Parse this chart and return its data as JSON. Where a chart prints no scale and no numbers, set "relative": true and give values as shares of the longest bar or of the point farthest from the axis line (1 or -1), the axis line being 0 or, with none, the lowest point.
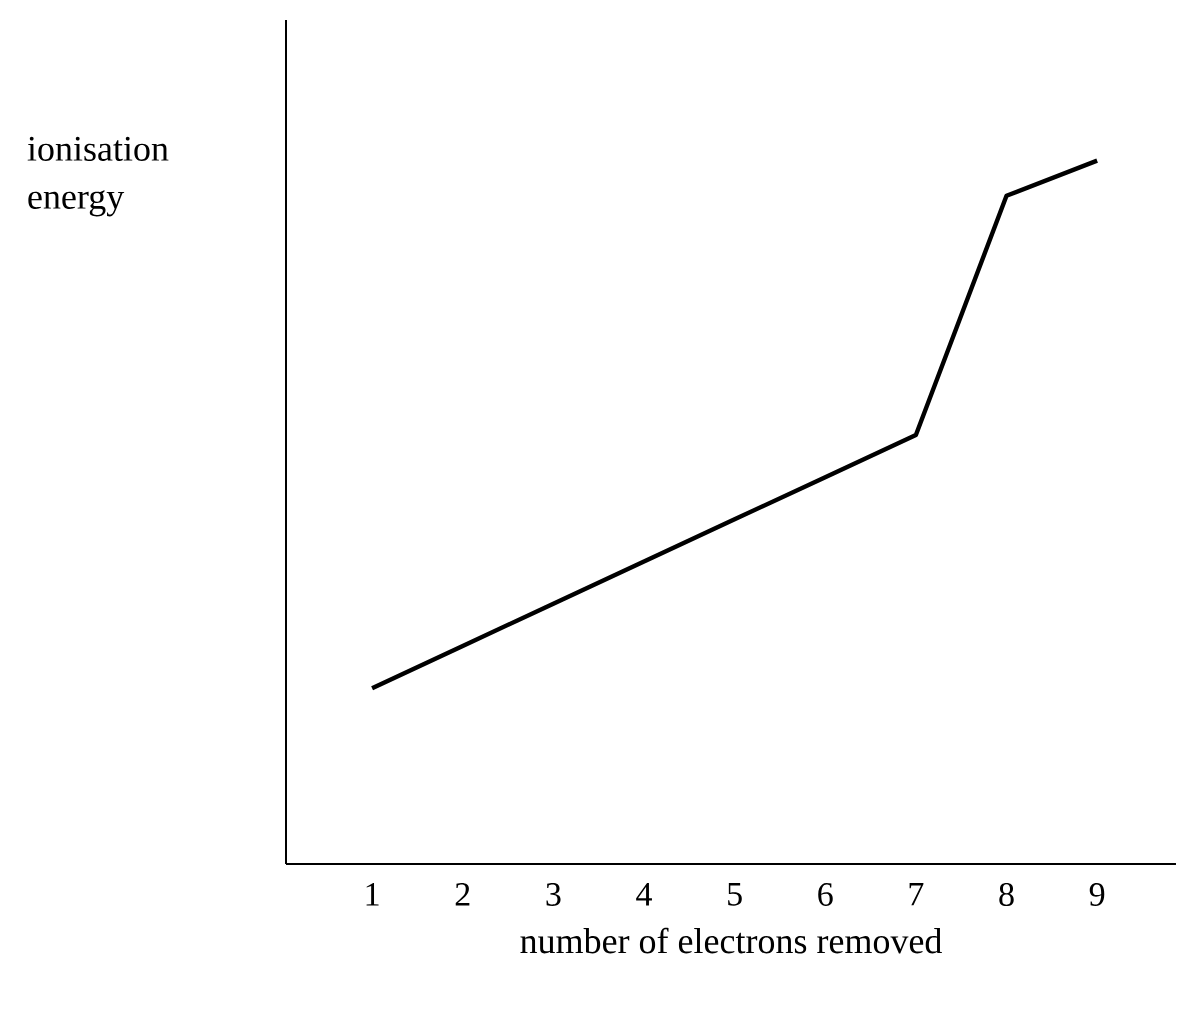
{
  "chart_data": {
    "type": "line",
    "relative": true,
    "xlabel": "number of electrons removed",
    "ylabel": "ionisation energy",
    "categories": [
      "1",
      "2",
      "3",
      "4",
      "5",
      "6",
      "7",
      "8",
      "9"
    ],
    "series": [
      {
        "color": "#000000",
        "values": [
          0.25,
          0.31,
          0.37,
          0.43,
          0.49,
          0.55,
          0.61,
          0.95,
          1.0
        ]
      }
    ],
    "marker": "none",
    "line_style": "solid"
  }
}
